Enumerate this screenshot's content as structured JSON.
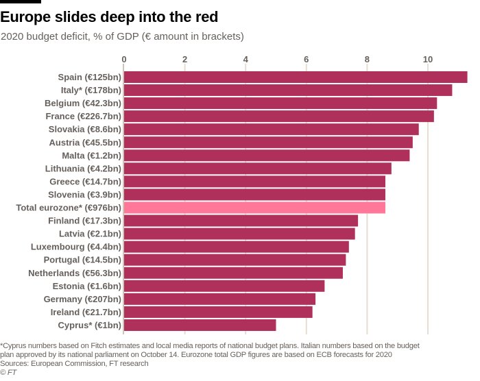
{
  "title": "Europe slides deep into the red",
  "subtitle": "2020 budget deficit, % of GDP (€ amount in brackets)",
  "colors": {
    "bar": "#b0305c",
    "highlight": "#ff7799",
    "grid": "#e6ddd3",
    "text": "#66605c"
  },
  "chart_data": {
    "type": "bar",
    "orientation": "horizontal",
    "title": "Europe slides deep into the red",
    "subtitle": "2020 budget deficit, % of GDP (€ amount in brackets)",
    "xlabel": "",
    "ylabel": "",
    "xlim": [
      0,
      11.5
    ],
    "xticks": [
      0,
      2,
      4,
      6,
      8,
      10
    ],
    "grid": true,
    "categories": [
      "Spain (€125bn)",
      "Italy* (€178bn)",
      "Belgium (€42.3bn)",
      "France (€226.7bn)",
      "Slovakia (€8.6bn)",
      "Austria (€45.5bn)",
      "Malta (€1.2bn)",
      "Lithuania (€4.2bn)",
      "Greece (€14.7bn)",
      "Slovenia (€3.9bn)",
      "Total eurozone* (€976bn)",
      "Finland (€17.3bn)",
      "Latvia (€2.1bn)",
      "Luxembourg (€4.4bn)",
      "Portugal (€14.5bn)",
      "Netherlands (€56.3bn)",
      "Estonia (€1.6bn)",
      "Germany (€207bn)",
      "Ireland (€21.7bn)",
      "Cyprus* (€1bn)"
    ],
    "values": [
      11.3,
      10.8,
      10.3,
      10.2,
      9.7,
      9.5,
      9.4,
      8.8,
      8.6,
      8.6,
      8.6,
      7.7,
      7.6,
      7.4,
      7.3,
      7.2,
      6.6,
      6.3,
      6.2,
      5.0
    ],
    "highlight_index": 10
  },
  "footnotes": {
    "note_line1": "*Cyprus numbers based on Fitch estimates and local media reports of national budget plans. Italian numbers based on the budget",
    "note_line2": "plan approved by its national parliament on October 14. Eurozone total GDP figures are based on ECB forecasts for 2020",
    "sources": "Sources: European Commission, FT research",
    "copyright": "© FT"
  }
}
